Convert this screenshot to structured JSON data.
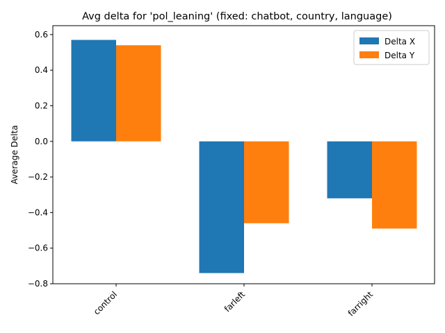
{
  "chart_data": {
    "type": "bar",
    "title": "Avg delta for 'pol_leaning' (fixed: chatbot, country, language)",
    "xlabel": "",
    "ylabel": "Average Delta",
    "categories": [
      "control",
      "farleft",
      "farright"
    ],
    "series": [
      {
        "name": "Delta X",
        "color": "#1f77b4",
        "values": [
          0.57,
          -0.74,
          -0.32
        ]
      },
      {
        "name": "Delta Y",
        "color": "#ff7f0e",
        "values": [
          0.54,
          -0.46,
          -0.49
        ]
      }
    ],
    "ylim": [
      -0.8,
      0.65
    ],
    "yticks": [
      -0.8,
      -0.6,
      -0.4,
      -0.2,
      0.0,
      0.2,
      0.4,
      0.6
    ],
    "ytick_labels": [
      "−0.8",
      "−0.6",
      "−0.4",
      "−0.2",
      "0.0",
      "0.2",
      "0.4",
      "0.6"
    ],
    "legend_position": "top-right",
    "grid": false
  }
}
